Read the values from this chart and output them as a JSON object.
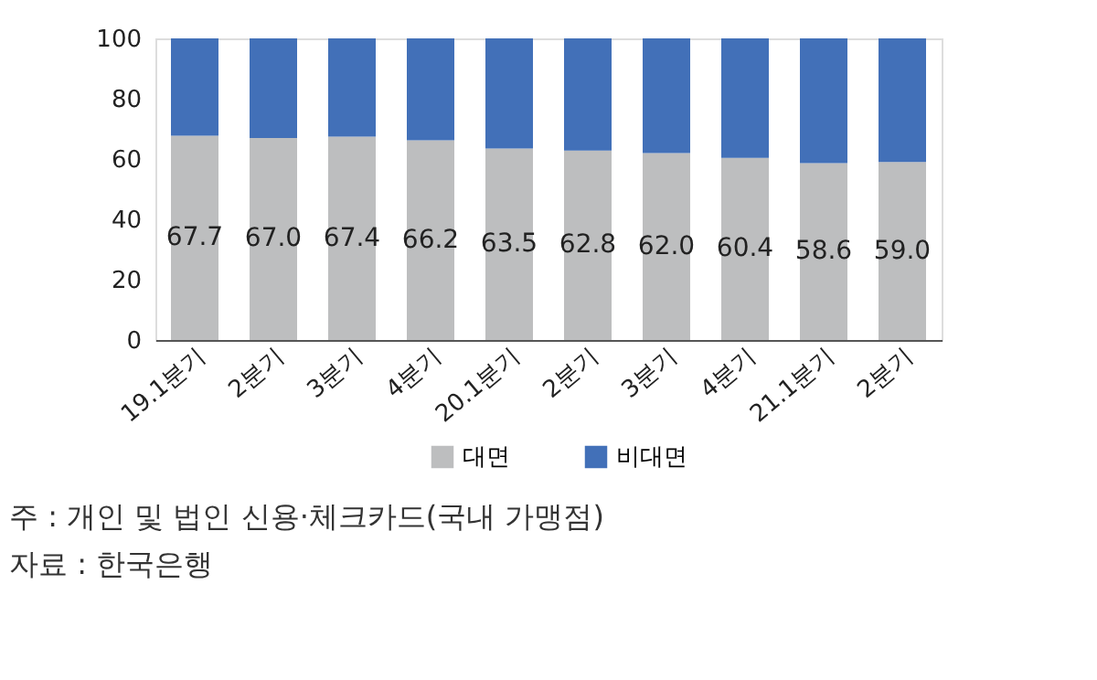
{
  "chart_data": {
    "type": "bar",
    "stacked": true,
    "categories": [
      "19.1분기",
      "2분기",
      "3분기",
      "4분기",
      "20.1분기",
      "2분기",
      "3분기",
      "4분기",
      "21.1분기",
      "2분기"
    ],
    "series": [
      {
        "name": "대면",
        "color": "#bdbebf",
        "values": [
          67.7,
          67.0,
          67.4,
          66.2,
          63.5,
          62.8,
          62.0,
          60.4,
          58.6,
          59.0
        ],
        "value_labels": [
          "67.7",
          "67.0",
          "67.4",
          "66.2",
          "63.5",
          "62.8",
          "62.0",
          "60.4",
          "58.6",
          "59.0"
        ]
      },
      {
        "name": "비대면",
        "color": "#4270b8",
        "values": [
          32.3,
          33.0,
          32.6,
          33.8,
          36.5,
          37.2,
          38.0,
          39.6,
          41.4,
          41.0
        ]
      }
    ],
    "ylim": [
      0,
      100
    ],
    "yticks": [
      0,
      20,
      40,
      60,
      80,
      100
    ],
    "grid": false,
    "legend": "bottom",
    "annotations": [
      "주 : 개인 및 법인 신용·체크카드(국내 가맹점)",
      "자료 : 한국은행"
    ]
  }
}
